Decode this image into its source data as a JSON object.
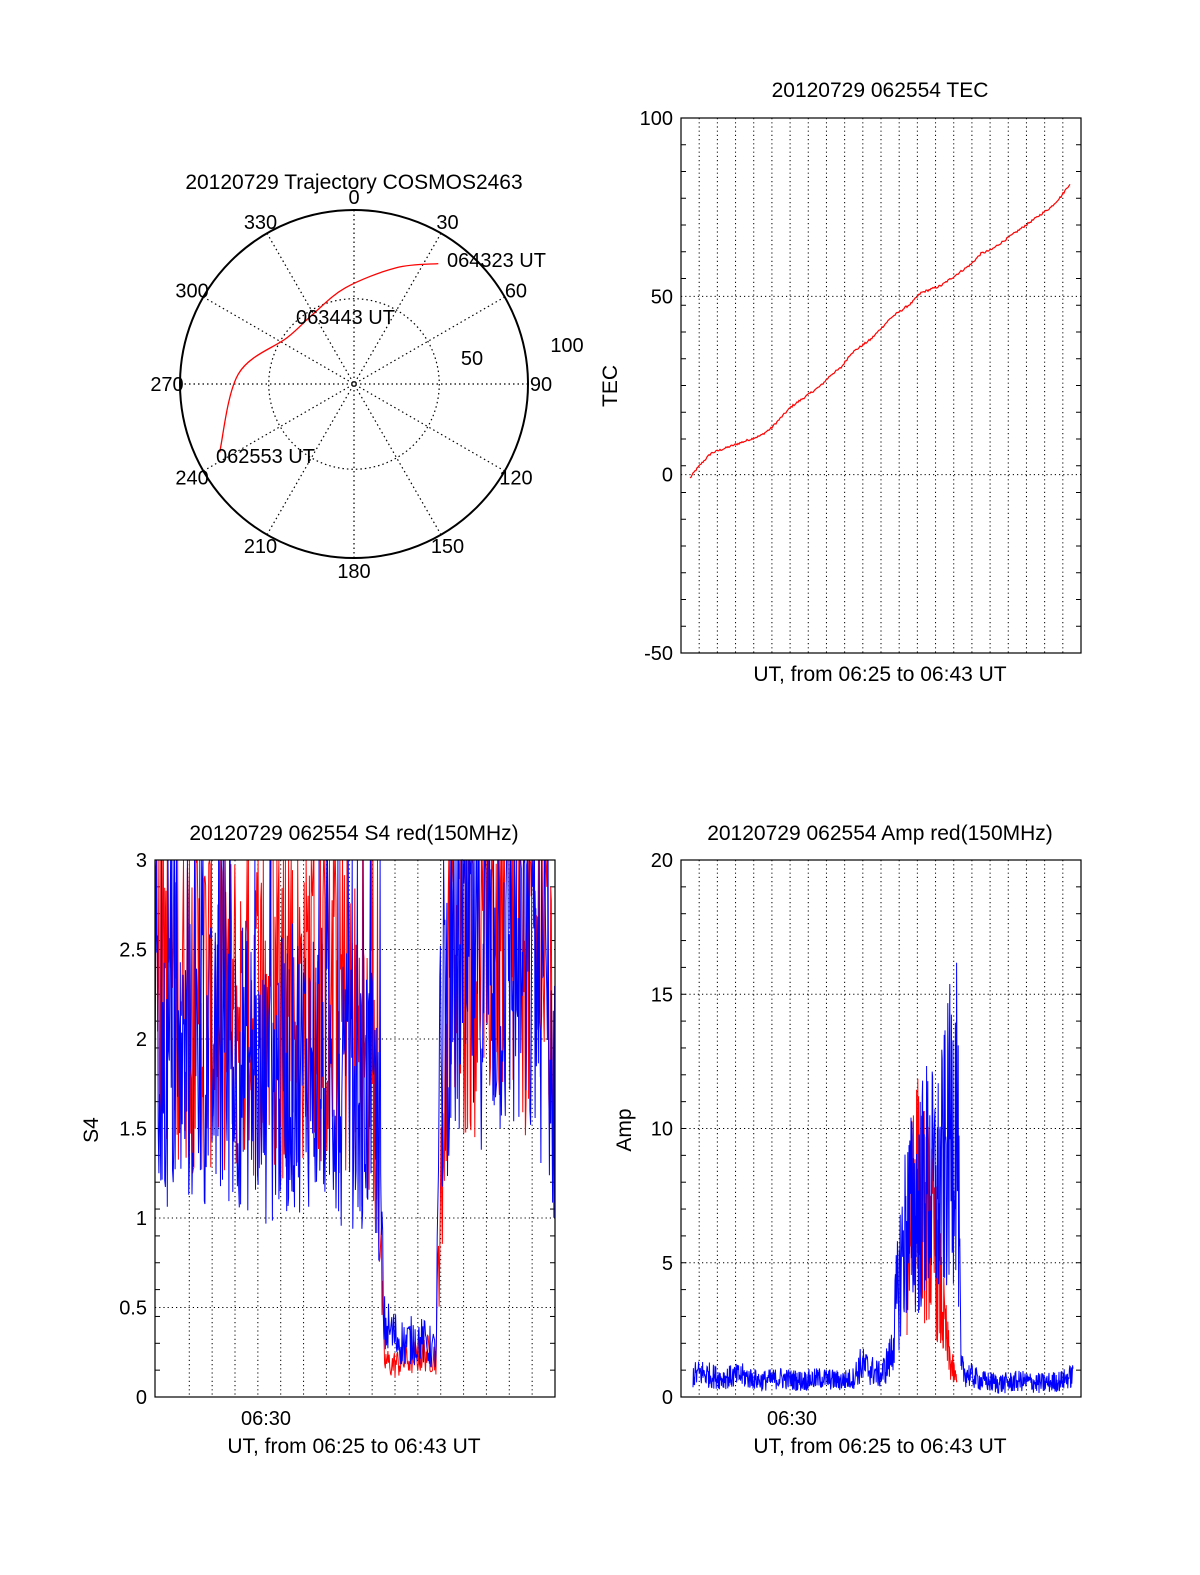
{
  "colors": {
    "axis": "#000000",
    "grid": "#000000",
    "red": "#ff0000",
    "blue": "#0000ff"
  },
  "chart_data": [
    {
      "type": "polar",
      "title": "20120729 Trajectory COSMOS2463",
      "azimuth_labels": [
        "0",
        "30",
        "60",
        "90",
        "120",
        "150",
        "180",
        "210",
        "240",
        "270",
        "300",
        "330"
      ],
      "radial_ring_labels": [
        "50",
        "100"
      ],
      "trajectory": {
        "color": "red",
        "points": [
          {
            "azimuth": 243,
            "elevation": 12,
            "label": "062553 UT"
          },
          {
            "azimuth": 275,
            "elevation": 30
          },
          {
            "azimuth": 305,
            "elevation": 48,
            "label": "063443 UT"
          },
          {
            "azimuth": 330,
            "elevation": 48
          },
          {
            "azimuth": 355,
            "elevation": 40
          },
          {
            "azimuth": 20,
            "elevation": 26
          },
          {
            "azimuth": 35,
            "elevation": 14,
            "label": "064323 UT"
          }
        ]
      }
    },
    {
      "type": "line",
      "title": "20120729 062554 TEC",
      "xlabel": "UT, from 06:25 to 06:43 UT",
      "ylabel": "TEC",
      "ylim": [
        -50,
        100
      ],
      "yticks": [
        "-50",
        "0",
        "50",
        "100"
      ],
      "grid": true,
      "series": [
        {
          "color": "red",
          "x_minutes": [
            0.45,
            0.7,
            1.0,
            1.5,
            2.0,
            2.5,
            3.0,
            3.5,
            4.0,
            4.5,
            5.0,
            5.5,
            6.0,
            6.5,
            7.0,
            7.5,
            8.0,
            8.5,
            9.0,
            9.5,
            10.0,
            10.5,
            11.0,
            11.5,
            12.0,
            12.5,
            13.0,
            13.5,
            14.0,
            14.5,
            15.0,
            15.5,
            16.0,
            16.5,
            17.0,
            17.5,
            18.0,
            18.5,
            19.0,
            19.5
          ],
          "values": [
            -1,
            1,
            3,
            6,
            7,
            8,
            9,
            10,
            11,
            13,
            16,
            19,
            21,
            23,
            25,
            28,
            30,
            34,
            36,
            38,
            41,
            44,
            46,
            48,
            51,
            52,
            53,
            55,
            57,
            59,
            62,
            63,
            65,
            67,
            69,
            71,
            73,
            75,
            78,
            82
          ]
        }
      ]
    },
    {
      "type": "line",
      "title": "20120729 062554 S4 red(150MHz)",
      "xlabel": "UT, from 06:25 to 06:43 UT",
      "ylabel": "S4",
      "ylim": [
        0,
        3
      ],
      "yticks": [
        "0",
        "0.5",
        "1",
        "1.5",
        "2",
        "2.5",
        "3"
      ],
      "xtick_label": "06:30",
      "grid": true,
      "series": [
        {
          "color": "red",
          "x_minutes": [
            0.0,
            1.0,
            2.0,
            3.0,
            4.0,
            5.0,
            6.0,
            7.0,
            8.0,
            9.0,
            10.0,
            10.3,
            10.6,
            11.0,
            11.5,
            12.0,
            12.5,
            13.0,
            13.2,
            13.6,
            14.0,
            15.0,
            16.0,
            17.0,
            18.0,
            18.5
          ],
          "values": [
            2.6,
            2.4,
            2.2,
            2.3,
            2.1,
            2.2,
            2.1,
            2.3,
            2.2,
            2.1,
            1.8,
            1.3,
            0.2,
            0.18,
            0.2,
            0.22,
            0.25,
            0.22,
            1.2,
            2.3,
            2.5,
            2.6,
            2.7,
            2.6,
            2.5,
            1.7
          ]
        },
        {
          "color": "blue",
          "x_minutes": [
            0.0,
            1.0,
            2.0,
            3.0,
            4.0,
            5.0,
            6.0,
            7.0,
            8.0,
            9.0,
            10.0,
            10.3,
            10.6,
            11.0,
            11.5,
            12.0,
            12.5,
            13.0,
            13.2,
            13.6,
            14.0,
            15.0,
            16.0,
            17.0,
            18.0,
            18.5
          ],
          "values": [
            1.8,
            1.8,
            1.9,
            1.8,
            1.9,
            1.7,
            1.8,
            1.9,
            1.8,
            1.7,
            1.7,
            1.5,
            0.4,
            0.35,
            0.3,
            0.32,
            0.3,
            0.25,
            1.9,
            2.3,
            2.4,
            2.5,
            2.5,
            2.4,
            2.3,
            1.6
          ]
        }
      ]
    },
    {
      "type": "line",
      "title": "20120729 062554 Amp red(150MHz)",
      "xlabel": "UT, from 06:25 to 06:43 UT",
      "ylabel": "Amp",
      "ylim": [
        0,
        20
      ],
      "yticks": [
        "0",
        "5",
        "10",
        "15",
        "20"
      ],
      "xtick_label": "06:30",
      "grid": true,
      "series": [
        {
          "color": "red",
          "x_minutes": [
            11.3,
            11.6,
            12.0,
            12.4,
            12.8,
            13.1,
            13.4,
            13.8
          ],
          "values": [
            5.0,
            8.5,
            7.0,
            6.5,
            5.0,
            3.0,
            1.5,
            0.5
          ]
        },
        {
          "color": "blue",
          "x_minutes": [
            0.6,
            1.0,
            2.0,
            3.0,
            4.0,
            5.0,
            6.0,
            7.0,
            8.0,
            8.6,
            9.0,
            10.0,
            10.5,
            11.0,
            11.3,
            11.8,
            12.3,
            12.8,
            13.3,
            13.8,
            14.0,
            15.0,
            16.0,
            17.0,
            18.0,
            19.0,
            19.6
          ],
          "values": [
            0.8,
            0.9,
            0.7,
            0.8,
            0.6,
            0.7,
            0.6,
            0.7,
            0.6,
            0.7,
            1.2,
            0.8,
            1.5,
            5.0,
            6.5,
            7.0,
            8.0,
            7.5,
            9.0,
            11.3,
            1.0,
            0.6,
            0.5,
            0.6,
            0.5,
            0.6,
            0.8
          ]
        }
      ]
    }
  ]
}
